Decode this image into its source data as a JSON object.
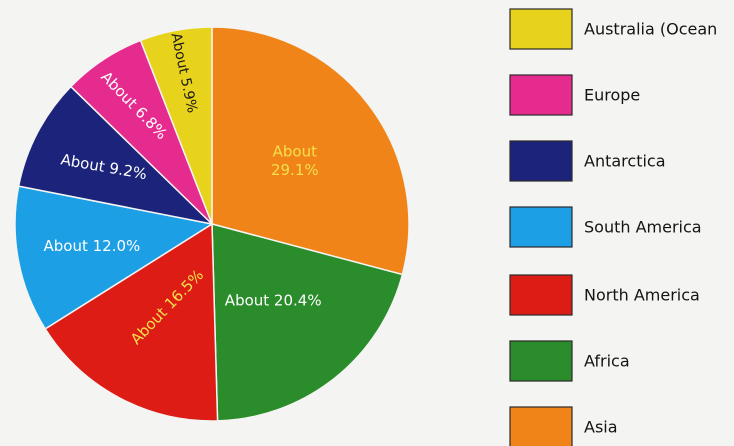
{
  "chart_data": {
    "type": "pie",
    "slices": [
      {
        "name": "Asia",
        "value": 29.1,
        "label": "About 29.1%",
        "color": "#f08419"
      },
      {
        "name": "Africa",
        "value": 20.4,
        "label": "About 20.4%",
        "color": "#2a8c2a"
      },
      {
        "name": "North America",
        "value": 16.5,
        "label": "About 16.5%",
        "color": "#dd1c15"
      },
      {
        "name": "South America",
        "value": 12.0,
        "label": "About 12.0%",
        "color": "#1d9fe6"
      },
      {
        "name": "Antarctica",
        "value": 9.2,
        "label": "About 9.2%",
        "color": "#1b237a"
      },
      {
        "name": "Europe",
        "value": 6.8,
        "label": "About 6.8%",
        "color": "#e52b8e"
      },
      {
        "name": "Australia (Oceania)",
        "value": 5.9,
        "label": "About 5.9%",
        "color": "#e8d31c"
      }
    ],
    "legend": {
      "position": "right",
      "entries": [
        "Australia (Ocean",
        "Europe",
        "Antarctica",
        "South America",
        "North America",
        "Africa",
        "Asia"
      ]
    },
    "label_colors": {
      "Asia": "#f3e04a",
      "Africa": "#ffffff",
      "North America": "#f3e04a",
      "South America": "#ffffff",
      "Antarctica": "#ffffff",
      "Europe": "#ffffff",
      "Australia (Oceania)": "#1a1a1a"
    }
  }
}
